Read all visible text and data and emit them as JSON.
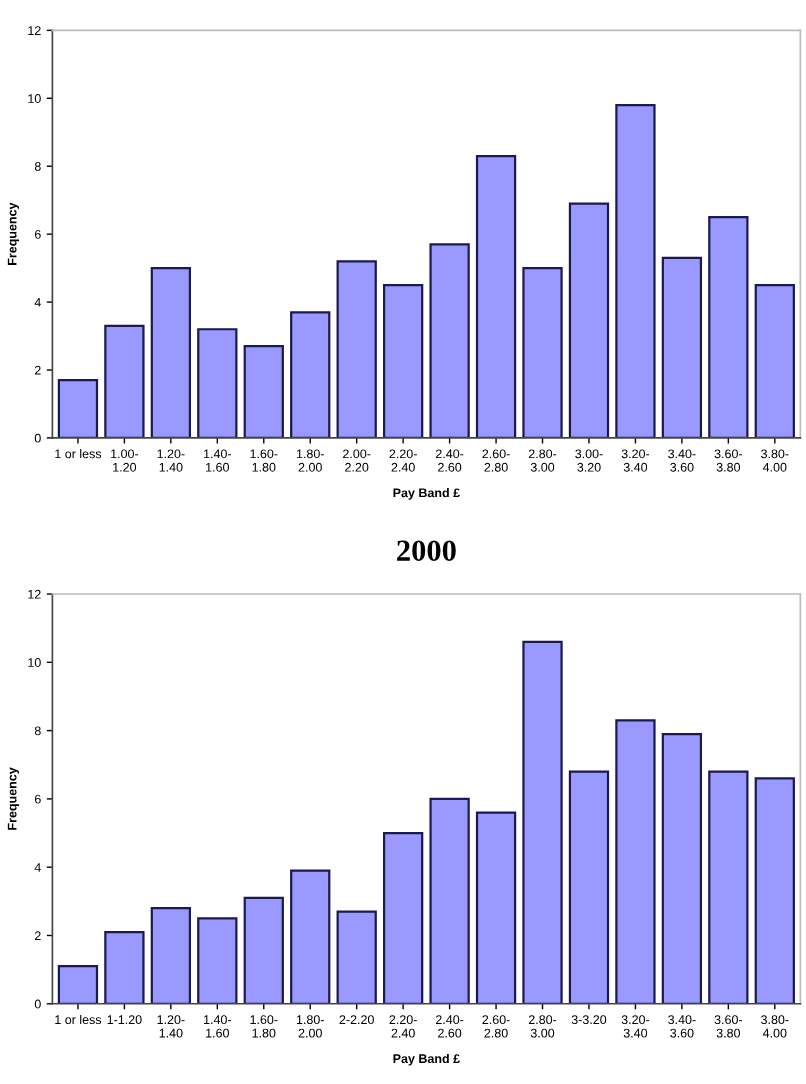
{
  "chart_data": [
    {
      "type": "bar",
      "xlabel": "Pay Band £",
      "ylabel": "Frequency",
      "categories": [
        "1 or less",
        "1.00-\n1.20",
        "1.20-\n1.40",
        "1.40-\n1.60",
        "1.60-\n1.80",
        "1.80-\n2.00",
        "2.00-\n2.20",
        "2.20-\n2.40",
        "2.40-\n2.60",
        "2.60-\n2.80",
        "2.80-\n3.00",
        "3.00-\n3.20",
        "3.20-\n3.40",
        "3.40-\n3.60",
        "3.60-\n3.80",
        "3.80-\n4.00"
      ],
      "values": [
        1.7,
        3.3,
        5.0,
        3.2,
        2.7,
        3.7,
        5.2,
        4.5,
        5.7,
        8.3,
        5.0,
        6.9,
        9.8,
        5.3,
        6.5,
        4.5
      ],
      "color": "#9999ff",
      "ylim": [
        0,
        12
      ],
      "yticks": [
        0,
        2,
        4,
        6,
        8,
        10,
        12
      ],
      "grid": false,
      "legend": false
    },
    {
      "type": "bar",
      "title": "2000",
      "xlabel": "Pay Band £",
      "ylabel": "Frequency",
      "categories": [
        "1 or less",
        "1-1.20",
        "1.20-\n1.40",
        "1.40-\n1.60",
        "1.60-\n1.80",
        "1.80-\n2.00",
        "2-2.20",
        "2.20-\n2.40",
        "2.40-\n2.60",
        "2.60-\n2.80",
        "2.80-\n3.00",
        "3-3.20",
        "3.20-\n3.40",
        "3.40-\n3.60",
        "3.60-\n3.80",
        "3.80-\n4.00"
      ],
      "values": [
        1.1,
        2.1,
        2.8,
        2.5,
        3.1,
        3.9,
        2.7,
        5.0,
        6.0,
        5.6,
        10.6,
        6.8,
        8.3,
        7.9,
        6.8,
        6.6
      ],
      "color": "#9999ff",
      "ylim": [
        0,
        12
      ],
      "yticks": [
        0,
        2,
        4,
        6,
        8,
        10,
        12
      ],
      "grid": false,
      "legend": false
    }
  ]
}
